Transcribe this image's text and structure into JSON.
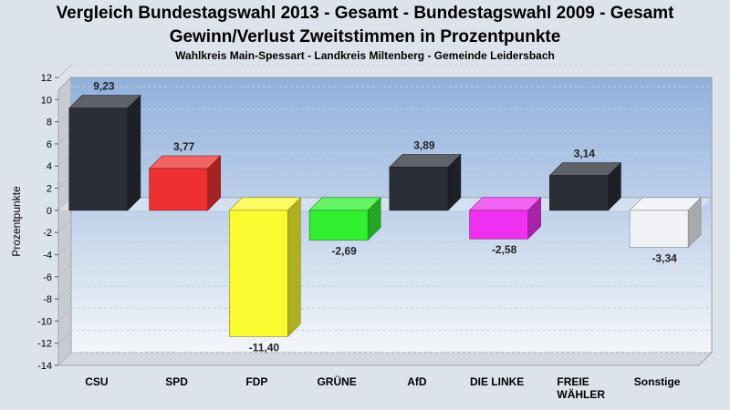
{
  "chart_data": {
    "type": "bar",
    "title": "Vergleich Bundestagswahl 2013 - Gesamt - Bundestagswahl 2009 - Gesamt",
    "subtitle": "Gewinn/Verlust Zweitstimmen in Prozentpunkte",
    "subsubtitle": "Wahlkreis Main-Spessart - Landkreis Miltenberg - Gemeinde Leidersbach",
    "ylabel": "Prozentpunkte",
    "xlabel": "",
    "ylim": [
      -14,
      12
    ],
    "ytick_step": 2,
    "grid": true,
    "categories": [
      "CSU",
      "SPD",
      "FDP",
      "GRÜNE",
      "AfD",
      "DIE LINKE",
      "FREIE WÄHLER",
      "Sonstige"
    ],
    "values": [
      9.23,
      3.77,
      -11.4,
      -2.69,
      3.89,
      -2.58,
      3.14,
      -3.34
    ],
    "value_labels": [
      "9,23",
      "3,77",
      "-11,40",
      "-2,69",
      "3,89",
      "-2,58",
      "3,14",
      "-3,34"
    ],
    "colors": [
      "#2a2e36",
      "#ee3030",
      "#fafa30",
      "#30f030",
      "#2a2e36",
      "#f030f0",
      "#2a2e36",
      "#f0f2f6"
    ]
  }
}
